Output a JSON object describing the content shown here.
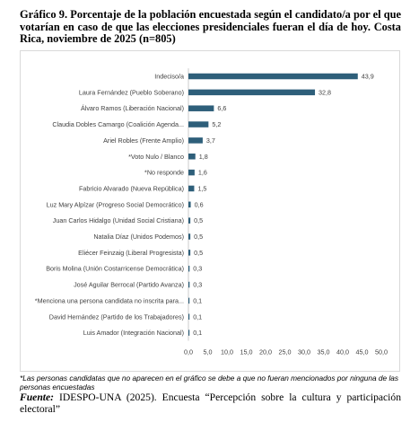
{
  "title": "Gráfico 9. Porcentaje de la población encuestada según el candidato/a por el que votarían en caso de que las elecciones presidenciales fueran el día de hoy. Costa Rica, noviembre de 2025 (n=805)",
  "footnote": "*Las personas candidatas que no aparecen en el gráfico se debe a que no fueran mencionados por ninguna de las personas encuestadas",
  "source": {
    "label": "Fuente:",
    "text": "IDESPO-UNA (2025). Encuesta “Percepción sobre la cultura y participación electoral”"
  },
  "colors": {
    "bar": "#2e5f7a",
    "axis": "#bfbfbf"
  },
  "chart_data": {
    "type": "bar",
    "orientation": "horizontal",
    "categories": [
      "Indeciso/a",
      "Laura Fernández (Pueblo Soberano)",
      "Álvaro Ramos (Liberación Nacional)",
      "Claudia Dobles Camargo (Coalición Agenda...",
      "Ariel Robles (Frente Amplio)",
      "*Voto Nulo / Blanco",
      "*No responde",
      "Fabricio Alvarado (Nueva República)",
      "Luz Mary Alpízar (Progreso Social Democrático)",
      "Juan Carlos Hidalgo (Unidad Social Cristiana)",
      "Natalia Díaz (Unidos Podemos)",
      "Eliécer Feinzaig (Liberal Progresista)",
      "Boris Molina (Unión Costarricense Democrática)",
      "José Aguilar Berrocal (Partido Avanza)",
      "*Menciona una persona candidata no inscrita para...",
      "David Hernández (Partido de los Trabajadores)",
      "Luis Amador (Integración Nacional)"
    ],
    "values": [
      43.9,
      32.8,
      6.6,
      5.2,
      3.7,
      1.8,
      1.6,
      1.5,
      0.6,
      0.5,
      0.5,
      0.5,
      0.3,
      0.3,
      0.1,
      0.1,
      0.1
    ],
    "value_labels": [
      "43,9",
      "32,8",
      "6,6",
      "5,2",
      "3,7",
      "1,8",
      "1,6",
      "1,5",
      "0,6",
      "0,5",
      "0,5",
      "0,5",
      "0,3",
      "0,3",
      "0,1",
      "0,1",
      "0,1"
    ],
    "xlim": [
      0,
      50
    ],
    "xticks": [
      0,
      5,
      10,
      15,
      20,
      25,
      30,
      35,
      40,
      45,
      50
    ],
    "xtick_labels": [
      "0,0",
      "5,0",
      "10,0",
      "15,0",
      "20,0",
      "25,0",
      "30,0",
      "35,0",
      "40,0",
      "45,0",
      "50,0"
    ],
    "grid": false,
    "legend": "none"
  }
}
